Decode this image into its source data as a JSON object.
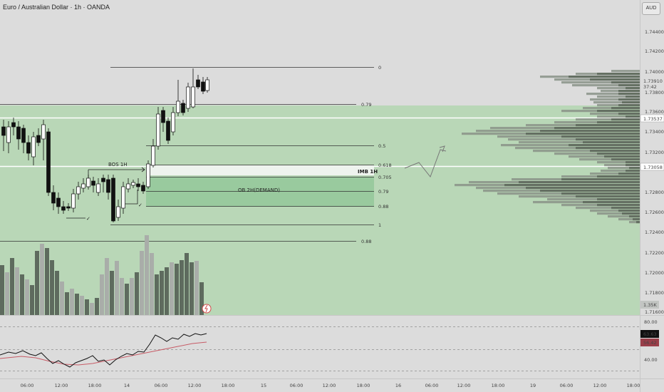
{
  "header": {
    "symbol_title": "Euro / Australian Dollar · 1h · OANDA",
    "currency_button": "AUD"
  },
  "colors": {
    "background": "#dcdcdc",
    "zone_green": "#b9d7b7",
    "zone_dark": "#8fc596",
    "imb_band": "#eef3ee",
    "candle_up": "#ffffff",
    "candle_down": "#111111",
    "volume_up": "#a9ada9",
    "volume_down": "#5e6b5e",
    "rsi_line": "#111111",
    "rsi_ma": "#c75b66"
  },
  "price_axis": {
    "labels": [
      "1.74400",
      "1.74200",
      "1.74000",
      "1.73600",
      "1.73400",
      "1.73200",
      "1.72800",
      "1.72600",
      "1.72400",
      "1.72200",
      "1.72000",
      "1.71800",
      "1.71600"
    ],
    "current_price": "1.73910",
    "countdown": "37:42",
    "price_1_73800": "1.73800",
    "price_1_73537": "1.73537",
    "price_1_73058": "1.73058",
    "volume_badge": "1.35K"
  },
  "rsi_axis": {
    "level_80": "80.00",
    "level_40": "40.00",
    "value": "63.63",
    "ma_value": "56.42"
  },
  "time_axis": [
    "06:00",
    "12:00",
    "18:00",
    "14",
    "06:00",
    "12:00",
    "18:00",
    "15",
    "06:00",
    "12:00",
    "18:00",
    "16",
    "06:00",
    "12:00",
    "18:00",
    "19",
    "06:00",
    "12:00",
    "18:00"
  ],
  "fib_levels": {
    "top_0": "0",
    "top_079": "0.79",
    "mid_05": "0.5",
    "mid_0618": "0.618",
    "mid_0705": "0.705",
    "mid_079": "0.79",
    "mid_088": "0.88",
    "mid_1": "1",
    "low_088": "0.88"
  },
  "annotations": {
    "bos": "BOS 1H",
    "imb": "IMB 1H",
    "ob": "OB 2H(DEMAND)",
    "check1": "✓",
    "check2": "✓"
  }
}
